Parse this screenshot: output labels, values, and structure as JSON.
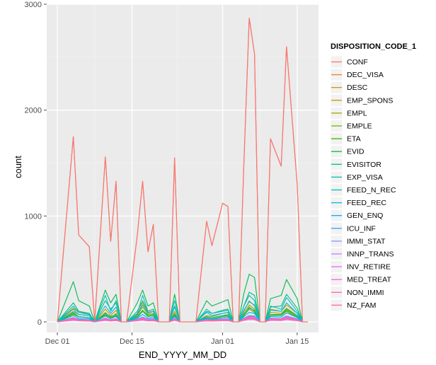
{
  "chart_data": {
    "type": "line",
    "xlabel": "END_YYYY_MM_DD",
    "ylabel": "count",
    "x_ticks": [
      "2013-12-01",
      "2013-12-15",
      "2014-01-01",
      "2014-01-15"
    ],
    "x_tick_labels": [
      "Dec 01",
      "Dec 15",
      "Jan 01",
      "Jan 15"
    ],
    "xlim": [
      "2013-11-29",
      "2014-01-19"
    ],
    "ylim": [
      -100,
      3000
    ],
    "y_ticks": [
      0,
      1000,
      2000,
      3000
    ],
    "grid": true,
    "background": "#ebebeb",
    "legend": {
      "title": "DISPOSITION_CODE_1",
      "position": "right"
    },
    "x": [
      "2013-12-01",
      "2013-12-04",
      "2013-12-05",
      "2013-12-07",
      "2013-12-08",
      "2013-12-10",
      "2013-12-11",
      "2013-12-12",
      "2013-12-13",
      "2013-12-14",
      "2013-12-16",
      "2013-12-17",
      "2013-12-18",
      "2013-12-19",
      "2013-12-20",
      "2013-12-21",
      "2013-12-22",
      "2013-12-23",
      "2013-12-24",
      "2013-12-27",
      "2013-12-29",
      "2013-12-30",
      "2014-01-01",
      "2014-01-02",
      "2014-01-03",
      "2014-01-04",
      "2014-01-05",
      "2014-01-06",
      "2014-01-07",
      "2014-01-08",
      "2014-01-09",
      "2014-01-10",
      "2014-01-12",
      "2014-01-13",
      "2014-01-15",
      "2014-01-16",
      "2014-01-17"
    ],
    "series": [
      {
        "name": "CONF",
        "color": "#F8766D",
        "values": [
          0,
          1750,
          820,
          710,
          0,
          1560,
          760,
          1330,
          0,
          0,
          820,
          1330,
          660,
          920,
          0,
          0,
          0,
          1550,
          0,
          0,
          950,
          720,
          1120,
          1090,
          0,
          0,
          1500,
          2870,
          2530,
          0,
          0,
          1730,
          1470,
          2600,
          1300,
          0,
          0
        ]
      },
      {
        "name": "DEC_VISA",
        "color": "#EA8331",
        "values": [
          0,
          25,
          10,
          8,
          0,
          22,
          12,
          18,
          0,
          0,
          12,
          22,
          10,
          14,
          0,
          0,
          0,
          20,
          0,
          0,
          14,
          10,
          16,
          15,
          0,
          0,
          20,
          35,
          30,
          0,
          0,
          22,
          18,
          30,
          16,
          0,
          0
        ]
      },
      {
        "name": "DESC",
        "color": "#D89000",
        "values": [
          0,
          40,
          20,
          15,
          0,
          35,
          18,
          30,
          0,
          0,
          20,
          35,
          16,
          22,
          0,
          0,
          0,
          32,
          0,
          0,
          22,
          16,
          26,
          24,
          0,
          0,
          32,
          55,
          48,
          0,
          0,
          35,
          28,
          50,
          25,
          0,
          0
        ]
      },
      {
        "name": "EMP_SPONS",
        "color": "#C09B00",
        "values": [
          0,
          130,
          90,
          80,
          0,
          120,
          60,
          110,
          0,
          0,
          70,
          180,
          90,
          100,
          0,
          0,
          0,
          100,
          0,
          0,
          60,
          50,
          80,
          90,
          0,
          0,
          100,
          200,
          150,
          0,
          0,
          120,
          100,
          160,
          80,
          0,
          0
        ]
      },
      {
        "name": "EMPL",
        "color": "#A3A500",
        "values": [
          0,
          100,
          70,
          60,
          0,
          90,
          40,
          80,
          0,
          0,
          60,
          140,
          70,
          80,
          0,
          0,
          0,
          80,
          0,
          0,
          50,
          40,
          60,
          70,
          0,
          0,
          80,
          160,
          120,
          0,
          0,
          90,
          80,
          130,
          60,
          0,
          0
        ]
      },
      {
        "name": "EMPLE",
        "color": "#7CAE00",
        "values": [
          0,
          70,
          50,
          40,
          0,
          60,
          30,
          60,
          0,
          0,
          40,
          100,
          50,
          60,
          0,
          0,
          0,
          60,
          0,
          0,
          30,
          25,
          40,
          50,
          0,
          0,
          60,
          120,
          90,
          0,
          0,
          60,
          60,
          100,
          40,
          0,
          0
        ]
      },
      {
        "name": "ETA",
        "color": "#39B600",
        "values": [
          0,
          80,
          50,
          40,
          0,
          70,
          40,
          60,
          0,
          0,
          50,
          110,
          60,
          70,
          0,
          0,
          0,
          60,
          0,
          0,
          40,
          30,
          50,
          60,
          0,
          0,
          60,
          140,
          100,
          0,
          0,
          70,
          60,
          110,
          50,
          0,
          0
        ]
      },
      {
        "name": "EVID",
        "color": "#00BB4E",
        "values": [
          0,
          380,
          200,
          150,
          0,
          300,
          180,
          260,
          0,
          0,
          180,
          300,
          150,
          180,
          0,
          0,
          0,
          260,
          0,
          0,
          200,
          150,
          190,
          210,
          0,
          0,
          270,
          450,
          420,
          0,
          0,
          220,
          250,
          400,
          220,
          0,
          0
        ]
      },
      {
        "name": "EVISITOR",
        "color": "#00BF7D",
        "values": [
          0,
          180,
          100,
          80,
          0,
          200,
          120,
          180,
          0,
          0,
          100,
          200,
          100,
          120,
          0,
          0,
          0,
          150,
          0,
          0,
          100,
          80,
          110,
          120,
          0,
          0,
          150,
          280,
          250,
          0,
          0,
          140,
          150,
          260,
          130,
          0,
          0
        ]
      },
      {
        "name": "EXP_VISA",
        "color": "#00C1A3",
        "values": [
          0,
          90,
          50,
          40,
          0,
          80,
          50,
          70,
          0,
          0,
          50,
          100,
          50,
          60,
          0,
          0,
          0,
          70,
          0,
          0,
          50,
          40,
          60,
          60,
          0,
          0,
          70,
          130,
          110,
          0,
          0,
          70,
          70,
          120,
          60,
          0,
          0
        ]
      },
      {
        "name": "FEED_N_REC",
        "color": "#00BFC4",
        "values": [
          0,
          150,
          90,
          70,
          0,
          250,
          100,
          200,
          0,
          0,
          80,
          250,
          100,
          120,
          0,
          0,
          0,
          200,
          0,
          0,
          120,
          80,
          100,
          110,
          0,
          0,
          150,
          250,
          200,
          0,
          0,
          150,
          120,
          230,
          100,
          0,
          0
        ]
      },
      {
        "name": "FEED_REC",
        "color": "#00BAE0",
        "values": [
          0,
          120,
          70,
          60,
          0,
          150,
          80,
          140,
          0,
          0,
          70,
          160,
          80,
          100,
          0,
          0,
          0,
          140,
          0,
          0,
          90,
          60,
          80,
          90,
          0,
          0,
          110,
          190,
          160,
          0,
          0,
          110,
          100,
          180,
          80,
          0,
          0
        ]
      },
      {
        "name": "GEN_ENQ",
        "color": "#00B0F6",
        "values": [
          0,
          60,
          35,
          30,
          0,
          55,
          30,
          50,
          0,
          0,
          35,
          70,
          35,
          45,
          0,
          0,
          0,
          50,
          0,
          0,
          35,
          25,
          40,
          45,
          0,
          0,
          50,
          90,
          80,
          0,
          0,
          50,
          45,
          85,
          40,
          0,
          0
        ]
      },
      {
        "name": "ICU_INF",
        "color": "#35A2FF",
        "values": [
          0,
          40,
          25,
          20,
          0,
          35,
          20,
          30,
          0,
          0,
          25,
          45,
          25,
          30,
          0,
          0,
          0,
          35,
          0,
          0,
          25,
          20,
          28,
          30,
          0,
          0,
          35,
          60,
          55,
          0,
          0,
          35,
          30,
          55,
          28,
          0,
          0
        ]
      },
      {
        "name": "IMMI_STAT",
        "color": "#9590FF",
        "values": [
          0,
          30,
          18,
          15,
          0,
          28,
          15,
          25,
          0,
          0,
          18,
          35,
          18,
          22,
          0,
          0,
          0,
          28,
          0,
          0,
          18,
          14,
          20,
          22,
          0,
          0,
          28,
          45,
          40,
          0,
          0,
          28,
          24,
          42,
          20,
          0,
          0
        ]
      },
      {
        "name": "INNP_TRANS",
        "color": "#C77CFF",
        "values": [
          0,
          20,
          12,
          10,
          0,
          18,
          10,
          16,
          0,
          0,
          12,
          22,
          12,
          14,
          0,
          0,
          0,
          18,
          0,
          0,
          12,
          10,
          14,
          15,
          0,
          0,
          18,
          30,
          26,
          0,
          0,
          18,
          16,
          28,
          14,
          0,
          0
        ]
      },
      {
        "name": "INV_RETIRE",
        "color": "#E76BF3",
        "values": [
          0,
          15,
          10,
          8,
          0,
          14,
          8,
          12,
          0,
          0,
          10,
          16,
          9,
          11,
          0,
          0,
          0,
          14,
          0,
          0,
          9,
          7,
          10,
          11,
          0,
          0,
          14,
          22,
          20,
          0,
          0,
          14,
          12,
          20,
          10,
          0,
          0
        ]
      },
      {
        "name": "MED_TREAT",
        "color": "#FA62DB",
        "values": [
          0,
          35,
          20,
          16,
          0,
          30,
          18,
          28,
          0,
          0,
          20,
          38,
          20,
          24,
          0,
          0,
          0,
          30,
          0,
          0,
          20,
          15,
          22,
          24,
          0,
          0,
          30,
          50,
          45,
          0,
          0,
          30,
          26,
          48,
          22,
          0,
          0
        ]
      },
      {
        "name": "NON_IMMI",
        "color": "#FF62BC",
        "values": [
          0,
          25,
          15,
          12,
          0,
          22,
          12,
          20,
          0,
          0,
          15,
          28,
          14,
          18,
          0,
          0,
          0,
          22,
          0,
          0,
          15,
          12,
          16,
          18,
          0,
          0,
          22,
          38,
          34,
          0,
          0,
          22,
          20,
          36,
          16,
          0,
          0
        ]
      },
      {
        "name": "NZ_FAM",
        "color": "#FF6C91",
        "values": [
          0,
          20,
          12,
          10,
          0,
          18,
          10,
          16,
          0,
          0,
          12,
          22,
          11,
          14,
          0,
          0,
          0,
          18,
          0,
          0,
          12,
          9,
          13,
          14,
          0,
          0,
          18,
          30,
          27,
          0,
          0,
          18,
          16,
          28,
          13,
          0,
          0
        ]
      }
    ]
  }
}
